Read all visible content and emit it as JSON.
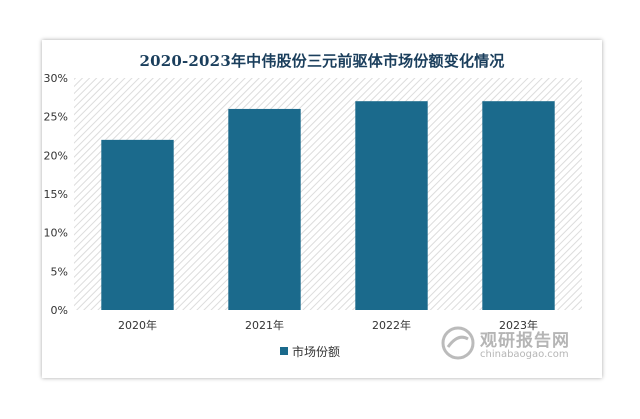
{
  "chart_data": {
    "type": "bar",
    "title": "2020-2023年中伟股份三元前驱体市场份额变化情况",
    "categories": [
      "2020年",
      "2021年",
      "2022年",
      "2023年"
    ],
    "series": [
      {
        "name": "市场份额",
        "values": [
          22,
          26,
          27,
          27
        ]
      }
    ],
    "ylim": [
      0,
      30
    ],
    "yticks": [
      "0%",
      "5%",
      "10%",
      "15%",
      "20%",
      "25%",
      "30%"
    ],
    "xlabel": "",
    "ylabel": "",
    "legend": "bottom",
    "grid": false,
    "colors": {
      "bar": "#1b6a8c",
      "title": "#1a3e5c",
      "plot_bg_hatch": "#dcdcdc"
    }
  },
  "watermark": {
    "main": "观研报告网",
    "sub": "chinabaogao.com"
  }
}
